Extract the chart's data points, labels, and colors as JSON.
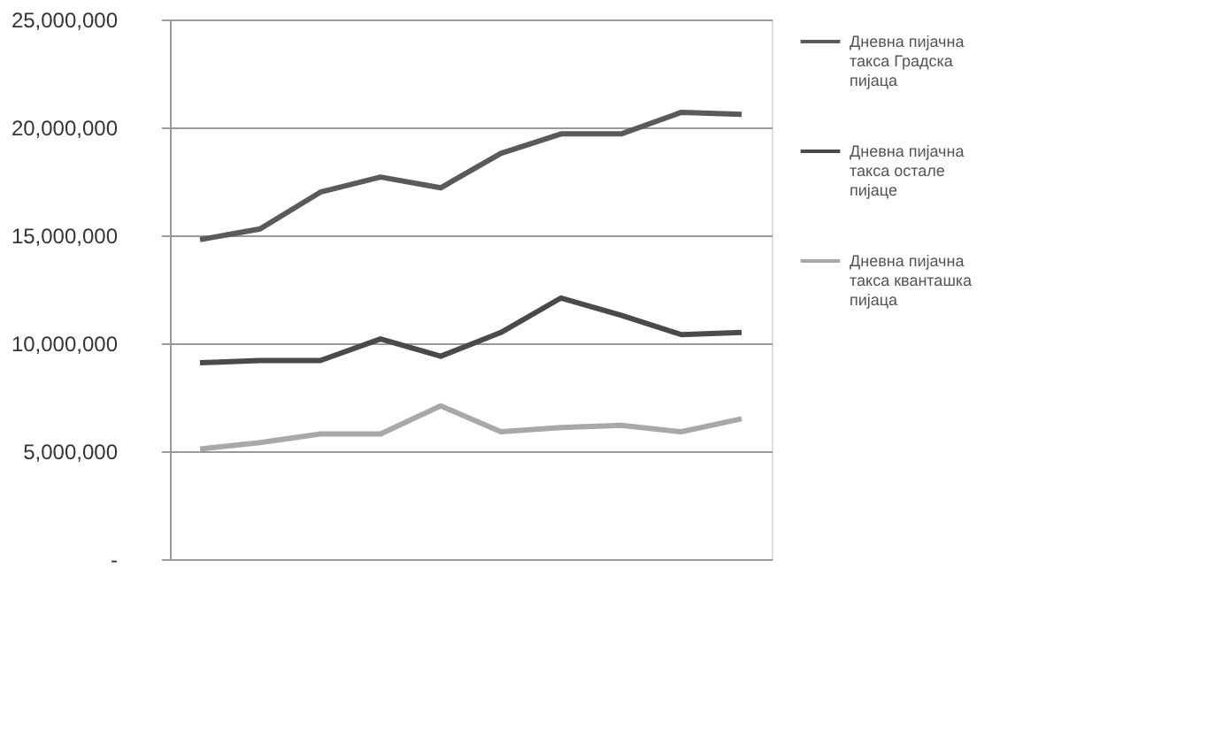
{
  "chart_data": {
    "type": "line",
    "categories": [
      null,
      null,
      null,
      null,
      null,
      null,
      null,
      null,
      null,
      null
    ],
    "series": [
      {
        "name": "Дневна пијачна такса Градска пијаца",
        "color": "#5a5a5a",
        "values": [
          14800000,
          15300000,
          17000000,
          17700000,
          17200000,
          18800000,
          19700000,
          19700000,
          20700000,
          20600000
        ]
      },
      {
        "name": "Дневна пијачна такса остале пијаце",
        "color": "#4a4a4a",
        "values": [
          9100000,
          9200000,
          9200000,
          10200000,
          9400000,
          10500000,
          12100000,
          11300000,
          10400000,
          10500000
        ]
      },
      {
        "name": "Дневна пијачна такса кванташка пијаца",
        "color": "#a8a8a8",
        "values": [
          5100000,
          5400000,
          5800000,
          5800000,
          7100000,
          5900000,
          6100000,
          6200000,
          5900000,
          6500000
        ]
      }
    ],
    "ylim": [
      0,
      25000000
    ],
    "yticks": [
      {
        "value": 0,
        "label": "-"
      },
      {
        "value": 5000000,
        "label": "5,000,000"
      },
      {
        "value": 10000000,
        "label": "10,000,000"
      },
      {
        "value": 15000000,
        "label": "15,000,000"
      },
      {
        "value": 20000000,
        "label": "20,000,000"
      },
      {
        "value": 25000000,
        "label": "25,000,000"
      }
    ],
    "grid": "y",
    "legend": "right",
    "marker": "none",
    "line_style": "solid"
  }
}
